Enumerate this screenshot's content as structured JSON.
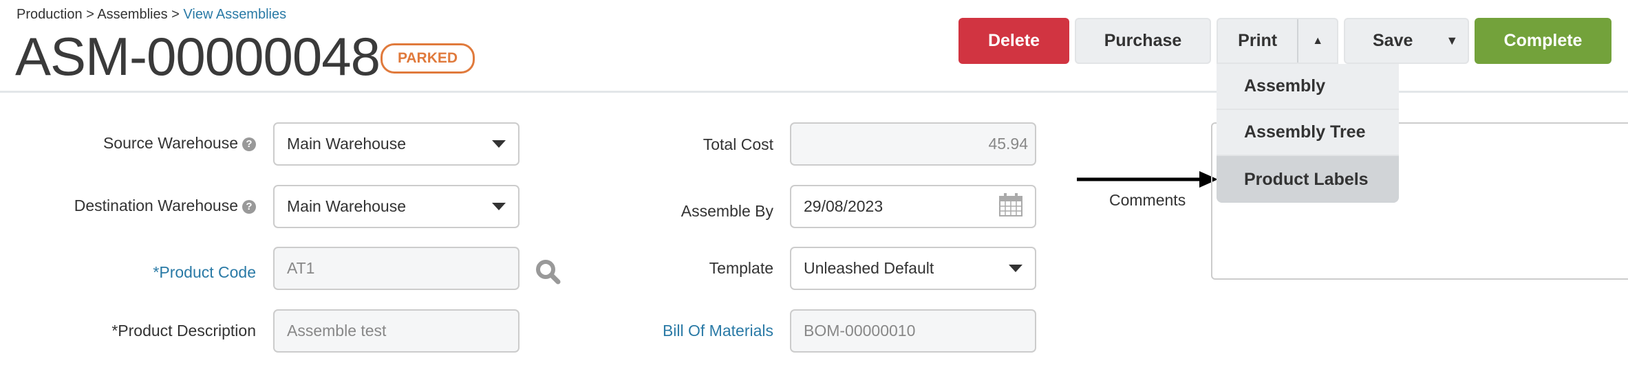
{
  "breadcrumb": {
    "items": [
      "Production",
      "Assemblies"
    ],
    "separator": ">",
    "current": "View Assemblies"
  },
  "header": {
    "title": "ASM-00000048",
    "status": "PARKED",
    "status_color": "#e07a3c"
  },
  "toolbar": {
    "delete_label": "Delete",
    "purchase_label": "Purchase",
    "print_label": "Print",
    "save_label": "Save",
    "complete_label": "Complete",
    "colors": {
      "delete": "#d13441",
      "complete": "#73a23b"
    }
  },
  "print_menu": {
    "items": [
      "Assembly",
      "Assembly Tree",
      "Product Labels"
    ],
    "highlighted": "Product Labels"
  },
  "form": {
    "source_warehouse": {
      "label": "Source Warehouse",
      "value": "Main Warehouse"
    },
    "destination_warehouse": {
      "label": "Destination Warehouse",
      "value": "Main Warehouse"
    },
    "product_code": {
      "label": "*Product Code",
      "value": "AT1"
    },
    "product_description": {
      "label": "*Product Description",
      "value": "Assemble test"
    },
    "total_cost": {
      "label": "Total Cost",
      "value": "45.94"
    },
    "assemble_by": {
      "label": "Assemble By",
      "value": "29/08/2023"
    },
    "template": {
      "label": "Template",
      "value": "Unleashed Default"
    },
    "bill_of_materials": {
      "label": "Bill Of Materials",
      "value": "BOM-00000010"
    },
    "comments": {
      "label": "Comments",
      "value": ""
    }
  }
}
